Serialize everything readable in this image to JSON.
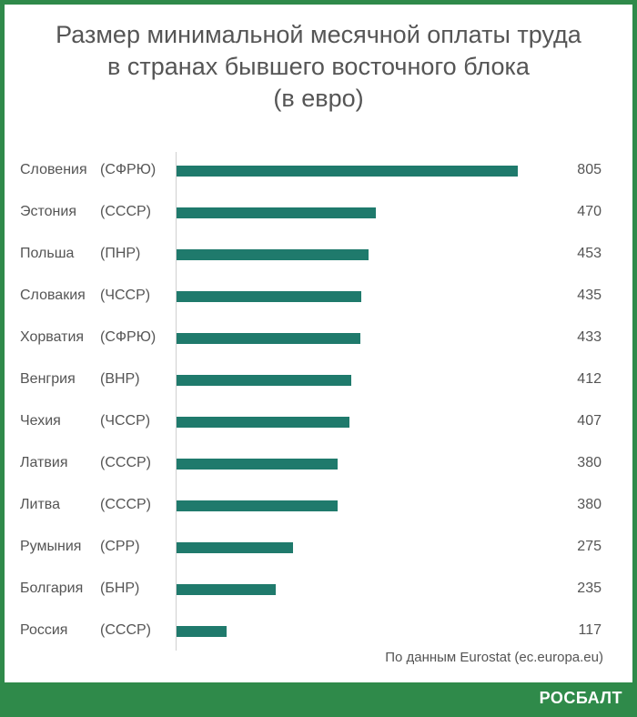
{
  "title_lines": [
    "Размер минимальной месячной оплаты труда",
    "в странах бывшего восточного блока",
    "(в евро)"
  ],
  "source": "По данным Eurostat (ec.europa.eu)",
  "brand": "РОСБАЛТ",
  "colors": {
    "bar": "#1f7a6c",
    "frame": "#2f8a4a",
    "text": "#555555"
  },
  "chart_data": {
    "type": "bar",
    "orientation": "horizontal",
    "title": "Размер минимальной месячной оплаты труда в странах бывшего восточного блока (в евро)",
    "categories": [
      "Словения (СФРЮ)",
      "Эстония (СССР)",
      "Польша (ПНР)",
      "Словакия (ЧССР)",
      "Хорватия (СФРЮ)",
      "Венгрия (ВНР)",
      "Чехия (ЧССР)",
      "Латвия (СССР)",
      "Литва (СССР)",
      "Румыния (СРР)",
      "Болгария (БНР)",
      "Россия (СССР)"
    ],
    "rows": [
      {
        "country": "Словения",
        "bloc": "(СФРЮ)",
        "value": 805
      },
      {
        "country": "Эстония",
        "bloc": "(СССР)",
        "value": 470
      },
      {
        "country": "Польша",
        "bloc": "(ПНР)",
        "value": 453
      },
      {
        "country": "Словакия",
        "bloc": "(ЧССР)",
        "value": 435
      },
      {
        "country": "Хорватия",
        "bloc": "(СФРЮ)",
        "value": 433
      },
      {
        "country": "Венгрия",
        "bloc": "(ВНР)",
        "value": 412
      },
      {
        "country": "Чехия",
        "bloc": "(ЧССР)",
        "value": 407
      },
      {
        "country": "Латвия",
        "bloc": "(СССР)",
        "value": 380
      },
      {
        "country": "Литва",
        "bloc": "(СССР)",
        "value": 380
      },
      {
        "country": "Румыния",
        "bloc": "(СРР)",
        "value": 275
      },
      {
        "country": "Болгария",
        "bloc": "(БНР)",
        "value": 235
      },
      {
        "country": "Россия",
        "bloc": "(СССР)",
        "value": 117
      }
    ],
    "values": [
      805,
      470,
      453,
      435,
      433,
      412,
      407,
      380,
      380,
      275,
      235,
      117
    ],
    "xlim": [
      0,
      805
    ],
    "grid": false,
    "data_labels": true
  }
}
